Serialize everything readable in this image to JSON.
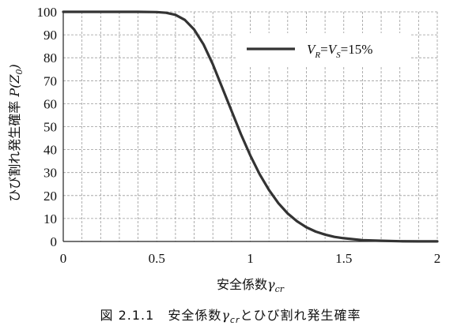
{
  "chart_data": {
    "type": "line",
    "title": "",
    "ylabel": "ひび割れ発生確率",
    "ylabel_var": "P",
    "ylabel_arg": "Z",
    "ylabel_arg_sub": "0",
    "xlabel": "安全係数",
    "xlabel_var": "γ",
    "xlabel_sub": "cr",
    "xlim": [
      0,
      2
    ],
    "ylim": [
      0,
      100
    ],
    "x_ticks": [
      "0",
      "0.5",
      "1",
      "1.5",
      "2"
    ],
    "y_ticks": [
      "0",
      "10",
      "20",
      "30",
      "40",
      "50",
      "60",
      "70",
      "80",
      "90",
      "100"
    ],
    "grid": true,
    "legend_position": "top-right",
    "series": [
      {
        "name_parts": [
          "V",
          "R",
          "=",
          "V",
          "S",
          "=15%"
        ],
        "color": "#333333",
        "x": [
          0,
          0.1,
          0.2,
          0.3,
          0.4,
          0.5,
          0.55,
          0.6,
          0.65,
          0.7,
          0.75,
          0.8,
          0.85,
          0.9,
          0.95,
          1.0,
          1.05,
          1.1,
          1.15,
          1.2,
          1.25,
          1.3,
          1.35,
          1.4,
          1.45,
          1.5,
          1.6,
          1.7,
          1.8,
          1.9,
          2.0
        ],
        "y": [
          100,
          100,
          100,
          100,
          100,
          99.9,
          99.6,
          98.7,
          96.5,
          92.3,
          85.8,
          77.1,
          67.0,
          56.8,
          46.7,
          37.5,
          29.3,
          22.4,
          16.7,
          12.2,
          8.8,
          6.2,
          4.3,
          3.0,
          2.0,
          1.4,
          0.6,
          0.3,
          0.1,
          0.05,
          0.02
        ]
      }
    ]
  },
  "caption": {
    "prefix": "図 2.1.1　安全係数",
    "var": "γ",
    "sub": "cr",
    "suffix": "とひび割れ発生確率"
  }
}
